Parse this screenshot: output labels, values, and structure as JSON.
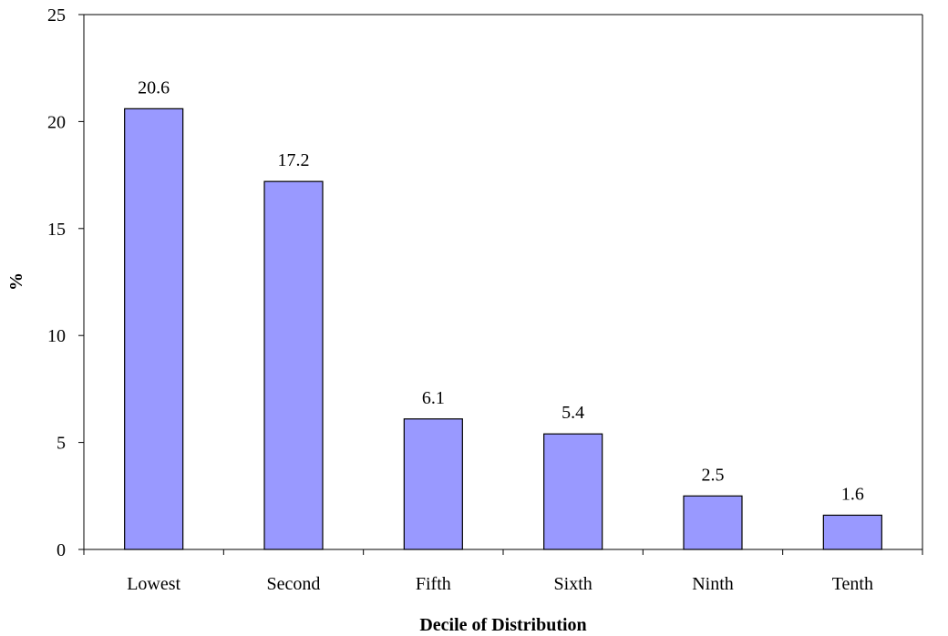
{
  "chart_data": {
    "type": "bar",
    "categories": [
      "Lowest",
      "Second",
      "Fifth",
      "Sixth",
      "Ninth",
      "Tenth"
    ],
    "values": [
      20.6,
      17.2,
      6.1,
      5.4,
      2.5,
      1.6
    ],
    "data_labels": [
      "20.6",
      "17.2",
      "6.1",
      "5.4",
      "2.5",
      "1.6"
    ],
    "title": "",
    "xlabel": "Decile of Distribution",
    "ylabel": "%",
    "ylim": [
      0,
      25
    ],
    "yticks": [
      "0",
      "5",
      "10",
      "15",
      "20",
      "25"
    ],
    "grid": false,
    "legend": "none",
    "bar_color": "#9999ff",
    "bar_edge_color": "#000000"
  }
}
